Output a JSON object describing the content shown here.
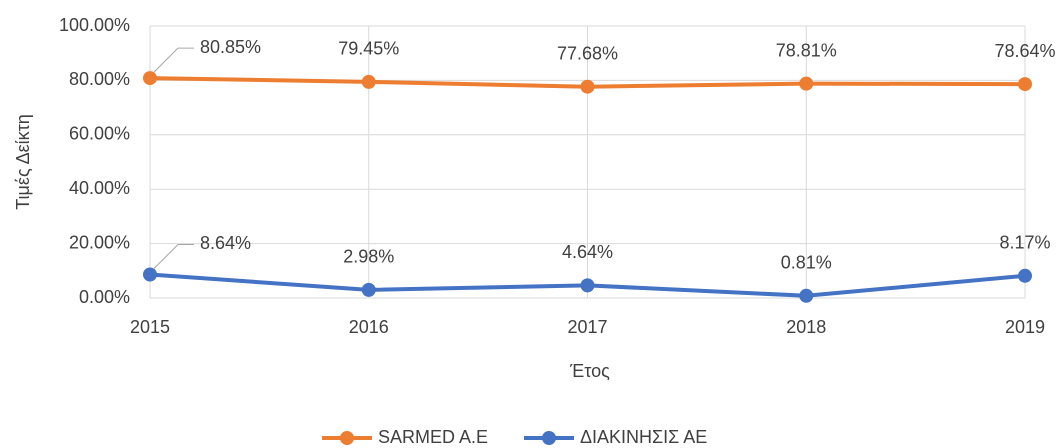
{
  "chart_data": {
    "type": "line",
    "x": [
      2015,
      2016,
      2017,
      2018,
      2019
    ],
    "xlim": [
      2015,
      2019
    ],
    "xticks": [
      2015,
      2016,
      2017,
      2018,
      2019
    ],
    "ylim": [
      0,
      100
    ],
    "yticks": [
      {
        "value": 0,
        "label": "0.00%"
      },
      {
        "value": 20,
        "label": "20.00%"
      },
      {
        "value": 40,
        "label": "40.00%"
      },
      {
        "value": 60,
        "label": "60.00%"
      },
      {
        "value": 80,
        "label": "80.00%"
      },
      {
        "value": 100,
        "label": "100.00%"
      }
    ],
    "xlabel": "Έτος",
    "ylabel": "Τιμές  Δείκτη",
    "grid": true,
    "legend": "bottom",
    "series": [
      {
        "name": "SARMED A.E",
        "color": "#ed7d31",
        "values": [
          80.85,
          79.45,
          77.68,
          78.81,
          78.64
        ],
        "value_labels": [
          "80.85%",
          "79.45%",
          "77.68%",
          "78.81%",
          "78.64%"
        ]
      },
      {
        "name": "ΔΙΑΚΙΝΗΣΙΣ ΑΕ",
        "color": "#4472c4",
        "values": [
          8.64,
          2.98,
          4.64,
          0.81,
          8.17
        ],
        "value_labels": [
          "8.64%",
          "2.98%",
          "4.64%",
          "0.81%",
          "8.17%"
        ]
      }
    ]
  }
}
